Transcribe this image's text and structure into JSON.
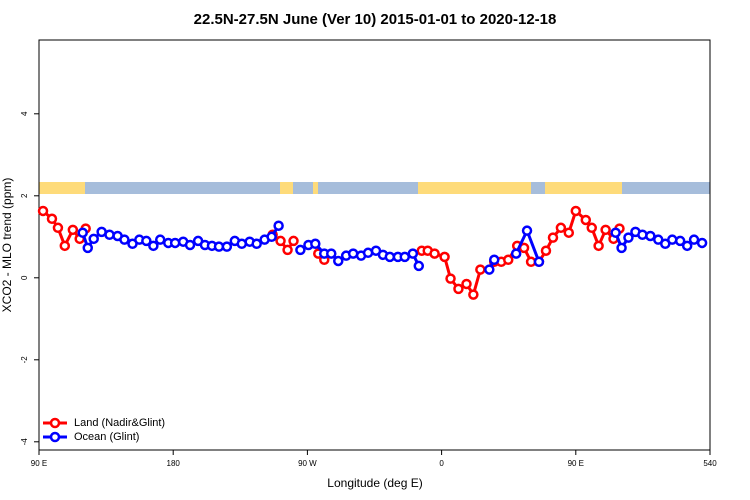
{
  "chart_data": {
    "type": "line",
    "title": "22.5N-27.5N June (Ver 10)   2015-01-01 to 2020-12-18",
    "x_label": "Longitude (deg E)",
    "y_label": "XCO2 - MLO trend (ppm)",
    "xlim": [
      90,
      540
    ],
    "xticks": [
      {
        "value": 90,
        "label": "90 E"
      },
      180,
      {
        "value": 270,
        "label": "90 W"
      },
      {
        "value": 360,
        "label": "0"
      },
      {
        "value": 450,
        "label": "90 E"
      },
      540
    ],
    "ylim": [
      -4.2,
      5.8
    ],
    "yticks": [
      -4,
      -2,
      0,
      2,
      4
    ],
    "legend": "bottom-left",
    "series": [
      {
        "name": "Land (Nadir&Glint)",
        "color": "#ff0000",
        "x": [
          92.7,
          98.7,
          102.7,
          107.3,
          112.7,
          117.3,
          121.3,
          null,
          246.7,
          252,
          256.7,
          260.7,
          null,
          277.3,
          281.3,
          null,
          346.7,
          350.7,
          355.3,
          362,
          366,
          371.3,
          376.7,
          381.3,
          386,
          null,
          395.3,
          400,
          404.7,
          410.7,
          415.3,
          420,
          425.3,
          430,
          434.7,
          440,
          445.3,
          450,
          456.7,
          460.7,
          465.3,
          470,
          475.3,
          479.3
        ],
        "values": [
          1.63,
          1.44,
          1.22,
          0.78,
          1.17,
          0.95,
          1.2,
          null,
          1.05,
          0.9,
          0.68,
          0.9,
          null,
          0.59,
          0.44,
          null,
          0.66,
          0.66,
          0.59,
          0.51,
          -0.02,
          -0.27,
          -0.15,
          -0.41,
          0.2,
          null,
          0.39,
          0.39,
          0.44,
          0.78,
          0.73,
          0.39,
          0.39,
          0.66,
          0.98,
          1.22,
          1.1,
          1.63,
          1.41,
          1.22,
          0.78,
          1.17,
          0.95,
          1.2
        ]
      },
      {
        "name": "Ocean (Glint)",
        "color": "#0000ff",
        "x": [
          119.3,
          122.7,
          126.7,
          132,
          137.3,
          142.7,
          147.3,
          152.7,
          157.3,
          162,
          166.7,
          171.3,
          176.7,
          181.3,
          186.7,
          191.3,
          196.7,
          201.3,
          206,
          210.7,
          216,
          221.3,
          226,
          231.3,
          236,
          241.3,
          246,
          250.7,
          null,
          265.3,
          270.7,
          275.3,
          281.3,
          286,
          290.7,
          296,
          300.7,
          306,
          310.7,
          316,
          320.7,
          325.3,
          330.7,
          335.3,
          340.7,
          344.7,
          null,
          392,
          395.3,
          null,
          410,
          417.3,
          425.3,
          null,
          476.7,
          480.7,
          485.3,
          490,
          494.7,
          500,
          505.3,
          510,
          514.7,
          520,
          524.7,
          529.3,
          534.7
        ],
        "values": [
          1.1,
          0.73,
          0.95,
          1.12,
          1.05,
          1.02,
          0.93,
          0.83,
          0.93,
          0.9,
          0.78,
          0.93,
          0.85,
          0.85,
          0.88,
          0.8,
          0.9,
          0.8,
          0.78,
          0.76,
          0.76,
          0.9,
          0.83,
          0.88,
          0.83,
          0.93,
          1.0,
          1.27,
          null,
          0.68,
          0.8,
          0.83,
          0.59,
          0.59,
          0.41,
          0.54,
          0.59,
          0.54,
          0.61,
          0.66,
          0.56,
          0.51,
          0.51,
          0.51,
          0.59,
          0.29,
          null,
          0.2,
          0.44,
          null,
          0.59,
          1.15,
          0.39,
          null,
          1.1,
          0.73,
          0.98,
          1.12,
          1.05,
          1.02,
          0.93,
          0.83,
          0.93,
          0.9,
          0.78,
          0.93,
          0.85
        ]
      }
    ]
  }
}
